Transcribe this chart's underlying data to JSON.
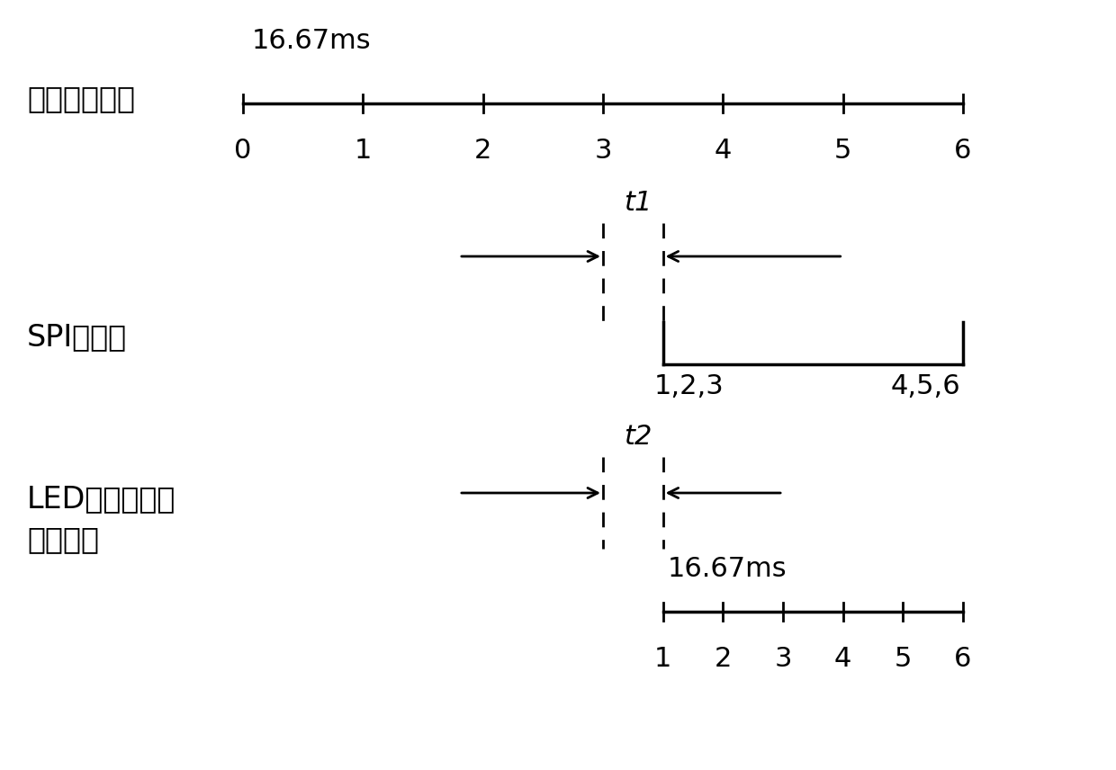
{
  "bg_color": "#ffffff",
  "text_color": "#000000",
  "font_size_label": 24,
  "font_size_tick": 22,
  "font_size_annot": 22,
  "row1_label": "背光值计算：",
  "row1_ms_label": "16.67ms",
  "row1_ticks": [
    0,
    1,
    2,
    3,
    4,
    5,
    6
  ],
  "row2_label": "SPI通信：",
  "row2_t1_label": "t1",
  "row2_123_label": "1,2,3",
  "row2_456_label": "4,5,6",
  "row3_label_line1": "LED控制器应用",
  "row3_label_line2": "背光值：",
  "row3_t2_label": "t2",
  "row3_ms_label": "16.67ms",
  "row3_ticks": [
    1,
    2,
    3,
    4,
    5,
    6
  ]
}
